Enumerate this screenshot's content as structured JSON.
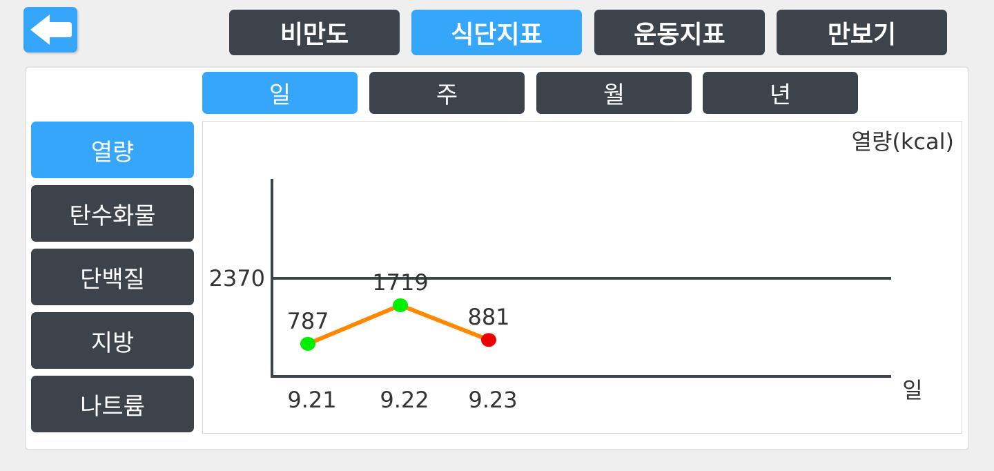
{
  "back_icon": "arrow-left-icon",
  "top_tabs": [
    {
      "label": "비만도",
      "active": false
    },
    {
      "label": "식단지표",
      "active": true
    },
    {
      "label": "운동지표",
      "active": false
    },
    {
      "label": "만보기",
      "active": false
    }
  ],
  "period_tabs": [
    {
      "label": "일",
      "active": true
    },
    {
      "label": "주",
      "active": false
    },
    {
      "label": "월",
      "active": false
    },
    {
      "label": "년",
      "active": false
    }
  ],
  "nutrients": [
    {
      "label": "열량",
      "active": true
    },
    {
      "label": "탄수화물",
      "active": false
    },
    {
      "label": "단백질",
      "active": false
    },
    {
      "label": "지방",
      "active": false
    },
    {
      "label": "나트륨",
      "active": false
    }
  ],
  "colors": {
    "accent": "#36a6fb",
    "dark": "#3d434b",
    "line": "#ff8800",
    "point_ok": "#00ee00",
    "point_over": "#ee0000"
  },
  "chart_data": {
    "type": "line",
    "ylabel": "열량(kcal)",
    "xlabel": "일",
    "x": [
      "9.21",
      "9.22",
      "9.23"
    ],
    "values": [
      787,
      1719,
      881
    ],
    "point_status": [
      "ok",
      "ok",
      "over"
    ],
    "reference_line": {
      "value": 2370,
      "label": "2370"
    },
    "ylim": [
      0,
      3250
    ]
  }
}
